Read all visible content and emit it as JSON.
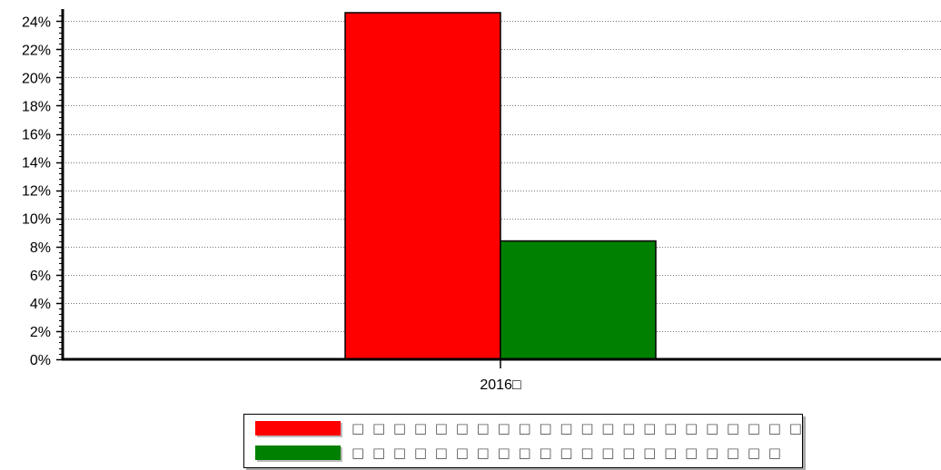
{
  "chart_data": {
    "type": "bar",
    "categories": [
      "2016□"
    ],
    "series": [
      {
        "name": "□ □ □ □ □ □ □ □ □ □ □ □ □ □ □ □ □ □ □ □ □ □",
        "values": [
          24.6
        ],
        "color": "#ff0000"
      },
      {
        "name": "□ □ □ □ □ □ □ □ □ □ □ □ □ □ □ □ □ □ □ □ □",
        "values": [
          8.4
        ],
        "color": "#008000"
      }
    ],
    "ylim": [
      0,
      24.6
    ],
    "yticks": [
      0,
      2,
      4,
      6,
      8,
      10,
      12,
      14,
      16,
      18,
      20,
      22,
      24
    ],
    "ytick_labels": [
      "0%",
      "2%",
      "4%",
      "6%",
      "8%",
      "10%",
      "12%",
      "14%",
      "16%",
      "18%",
      "20%",
      "22%",
      "24%"
    ],
    "grid": true,
    "legend_position": "bottom-center"
  }
}
